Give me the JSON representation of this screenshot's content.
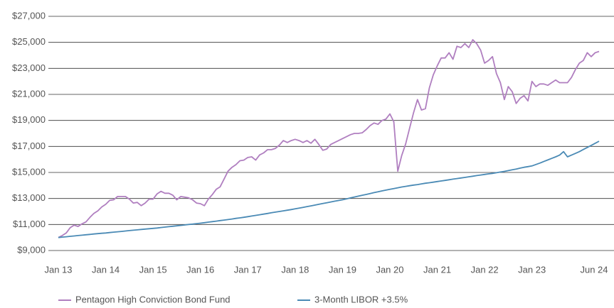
{
  "chart_data": {
    "type": "line",
    "categories": [
      "Jan 13",
      null,
      null,
      null,
      null,
      null,
      null,
      null,
      null,
      null,
      null,
      null,
      "Jan 14",
      null,
      null,
      null,
      null,
      null,
      null,
      null,
      null,
      null,
      null,
      null,
      "Jan 15",
      null,
      null,
      null,
      null,
      null,
      null,
      null,
      null,
      null,
      null,
      null,
      "Jan 16",
      null,
      null,
      null,
      null,
      null,
      null,
      null,
      null,
      null,
      null,
      null,
      "Jan 17",
      null,
      null,
      null,
      null,
      null,
      null,
      null,
      null,
      null,
      null,
      null,
      "Jan 18",
      null,
      null,
      null,
      null,
      null,
      null,
      null,
      null,
      null,
      null,
      null,
      "Jan 19",
      null,
      null,
      null,
      null,
      null,
      null,
      null,
      null,
      null,
      null,
      null,
      "Jan 20",
      null,
      null,
      null,
      null,
      null,
      null,
      null,
      null,
      null,
      null,
      null,
      "Jan 21",
      null,
      null,
      null,
      null,
      null,
      null,
      null,
      null,
      null,
      null,
      null,
      "Jan 22",
      null,
      null,
      null,
      null,
      null,
      null,
      null,
      null,
      null,
      null,
      null,
      "Jan 23",
      null,
      null,
      null,
      null,
      null,
      null,
      null,
      null,
      null,
      null,
      null,
      null,
      null,
      null,
      null,
      null,
      "Jun 24"
    ],
    "series": [
      {
        "name": "Pentagon High Conviction Bond Fund",
        "color": "#b07fc0",
        "values": [
          10000,
          10150,
          10350,
          10750,
          10950,
          10850,
          11050,
          11200,
          11550,
          11850,
          12050,
          12350,
          12550,
          12850,
          12900,
          13150,
          13150,
          13150,
          12950,
          12650,
          12700,
          12450,
          12650,
          12950,
          12950,
          13350,
          13550,
          13400,
          13400,
          13250,
          12900,
          13150,
          13100,
          13050,
          12900,
          12650,
          12600,
          12450,
          12950,
          13300,
          13700,
          13900,
          14500,
          15100,
          15400,
          15600,
          15900,
          15950,
          16150,
          16200,
          15950,
          16350,
          16500,
          16750,
          16750,
          16850,
          17100,
          17450,
          17300,
          17450,
          17550,
          17450,
          17300,
          17450,
          17250,
          17550,
          17150,
          16700,
          16800,
          17150,
          17300,
          17450,
          17600,
          17750,
          17900,
          18000,
          18000,
          18050,
          18300,
          18600,
          18800,
          18700,
          19000,
          19100,
          19500,
          18900,
          15100,
          16300,
          17200,
          18400,
          19600,
          20600,
          19800,
          19900,
          21500,
          22500,
          23200,
          23800,
          23800,
          24200,
          23700,
          24700,
          24600,
          24900,
          24600,
          25200,
          24900,
          24400,
          23400,
          23600,
          23900,
          22600,
          21900,
          20600,
          21600,
          21200,
          20300,
          20700,
          20900,
          20500,
          22000,
          21600,
          21800,
          21800,
          21700,
          21900,
          22100,
          21900,
          21900,
          21900,
          22300,
          22900,
          23400,
          23600,
          24200,
          23900,
          24200,
          24300
        ]
      },
      {
        "name": "3-Month LIBOR +3.5%",
        "color": "#4a8ab5",
        "values": [
          10000,
          10030,
          10060,
          10090,
          10120,
          10150,
          10180,
          10210,
          10240,
          10270,
          10300,
          10325,
          10350,
          10380,
          10410,
          10440,
          10470,
          10500,
          10530,
          10560,
          10590,
          10620,
          10650,
          10675,
          10700,
          10730,
          10765,
          10800,
          10830,
          10865,
          10900,
          10930,
          10965,
          11000,
          11030,
          11065,
          11100,
          11140,
          11180,
          11220,
          11260,
          11300,
          11340,
          11380,
          11420,
          11470,
          11510,
          11555,
          11600,
          11650,
          11700,
          11750,
          11800,
          11850,
          11900,
          11950,
          12000,
          12050,
          12100,
          12150,
          12200,
          12255,
          12315,
          12375,
          12430,
          12490,
          12550,
          12610,
          12670,
          12730,
          12790,
          12845,
          12900,
          12970,
          13040,
          13110,
          13180,
          13250,
          13310,
          13380,
          13450,
          13510,
          13580,
          13640,
          13700,
          13760,
          13820,
          13880,
          13930,
          13980,
          14030,
          14070,
          14120,
          14170,
          14210,
          14255,
          14300,
          14345,
          14390,
          14440,
          14485,
          14530,
          14575,
          14620,
          14665,
          14710,
          14760,
          14805,
          14850,
          14890,
          14930,
          14980,
          15030,
          15080,
          15140,
          15200,
          15260,
          15330,
          15400,
          15450,
          15500,
          15610,
          15720,
          15840,
          15960,
          16080,
          16200,
          16330,
          16600,
          16200,
          16330,
          16460,
          16600,
          16760,
          16920,
          17080,
          17240,
          17400
        ]
      }
    ],
    "ylim": [
      9000,
      27000
    ],
    "yticks": [
      {
        "value": 9000,
        "label": "$9,000"
      },
      {
        "value": 11000,
        "label": "$11,000"
      },
      {
        "value": 13000,
        "label": "$13,000"
      },
      {
        "value": 15000,
        "label": "$15,000"
      },
      {
        "value": 17000,
        "label": "$17,000"
      },
      {
        "value": 19000,
        "label": "$19,000"
      },
      {
        "value": 21000,
        "label": "$21,000"
      },
      {
        "value": 23000,
        "label": "$23,000"
      },
      {
        "value": 25000,
        "label": "$25,000"
      },
      {
        "value": 27000,
        "label": "$27,000"
      }
    ],
    "grid": true
  }
}
